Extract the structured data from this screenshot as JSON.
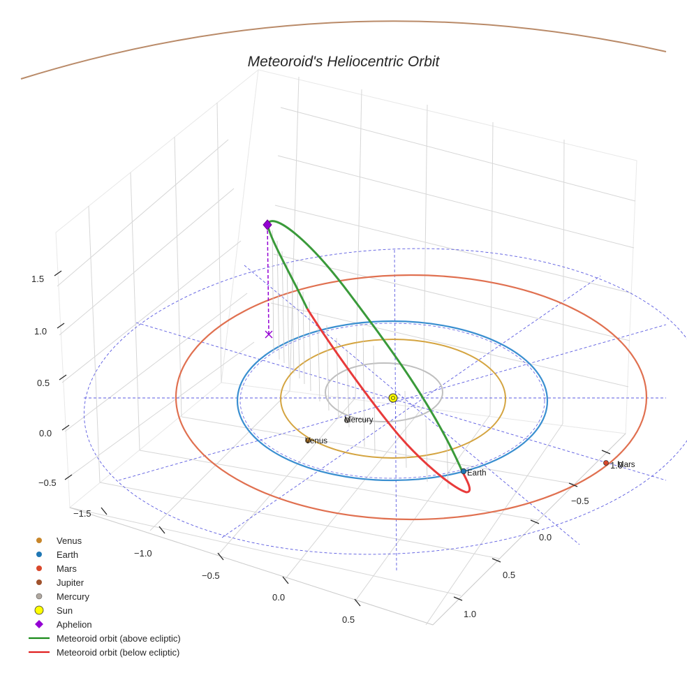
{
  "chart_data": {
    "type": "scatter",
    "projection": "3d",
    "title": "Meteoroid's Heliocentric Orbit",
    "axes": {
      "x": {
        "ticks": [
          -1.5,
          -1.0,
          -0.5,
          0.0,
          0.5
        ],
        "tick_labels": [
          "−1.5",
          "−1.0",
          "−0.5",
          "0.0",
          "0.5"
        ]
      },
      "y": {
        "ticks": [
          -0.5,
          0.0,
          0.5,
          1.0
        ],
        "tick_labels": [
          "−0.5",
          "0.0",
          "0.5",
          "1.0"
        ]
      },
      "z": {
        "ticks": [
          -0.5,
          0.0,
          0.5,
          1.0,
          1.5
        ],
        "tick_labels": [
          "−0.5",
          "0.0",
          "0.5",
          "1.0",
          "1.5"
        ]
      }
    },
    "planets": [
      {
        "name": "Venus",
        "color": "#c8862a",
        "label": "Venus"
      },
      {
        "name": "Earth",
        "color": "#1f77b4",
        "label": "Earth"
      },
      {
        "name": "Mars",
        "color": "#d9472b",
        "label": "Mars"
      },
      {
        "name": "Jupiter",
        "color": "#a0522d",
        "label": ""
      },
      {
        "name": "Mercury",
        "color": "#b0a8a0",
        "label": "Mercury"
      }
    ],
    "orbits": [
      {
        "name": "Mercury",
        "color": "#bfbfbf"
      },
      {
        "name": "Venus",
        "color": "#d4a440"
      },
      {
        "name": "Earth",
        "color": "#3a8fd0"
      },
      {
        "name": "Mars",
        "color": "#e07050"
      },
      {
        "name": "Jupiter",
        "color": "#b98a68"
      }
    ],
    "sun": {
      "name": "Sun",
      "color": "#ffff00"
    },
    "aphelion": {
      "name": "Aphelion",
      "color": "#9400d3"
    },
    "meteoroid": {
      "above_label": "Meteoroid orbit (above ecliptic)",
      "below_label": "Meteoroid orbit (below ecliptic)",
      "above_color": "#3a9a3a",
      "below_color": "#e83a3a"
    },
    "legend": [
      {
        "label": "Venus",
        "marker": "circle",
        "color": "#c8862a"
      },
      {
        "label": "Earth",
        "marker": "circle",
        "color": "#1f77b4"
      },
      {
        "label": "Mars",
        "marker": "circle",
        "color": "#d9472b"
      },
      {
        "label": "Jupiter",
        "marker": "circle",
        "color": "#a0522d"
      },
      {
        "label": "Mercury",
        "marker": "circle",
        "color": "#b0a8a0"
      },
      {
        "label": "Sun",
        "marker": "circle-large",
        "color": "#ffff00"
      },
      {
        "label": "Aphelion",
        "marker": "diamond",
        "color": "#9400d3"
      },
      {
        "label": "Meteoroid orbit (above ecliptic)",
        "marker": "line",
        "color": "#1a8a1a"
      },
      {
        "label": "Meteoroid orbit (below ecliptic)",
        "marker": "line",
        "color": "#e02020"
      }
    ],
    "legend_position": "bottom-left"
  }
}
